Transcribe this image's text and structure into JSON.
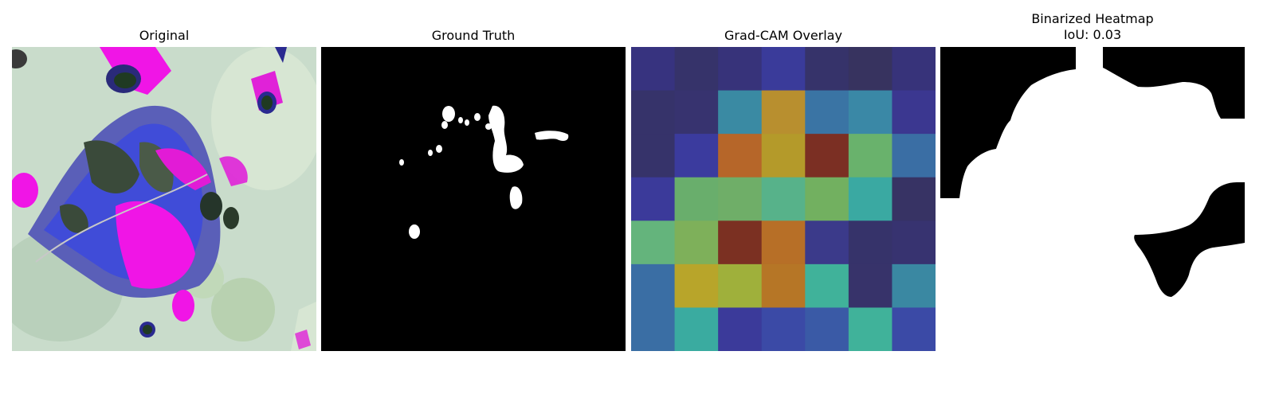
{
  "figure": {
    "panels": [
      {
        "title": "Original",
        "icon": "leaf-photo"
      },
      {
        "title": "Ground Truth",
        "icon": "binary-mask"
      },
      {
        "title": "Grad-CAM Overlay",
        "icon": "heatmap-grid"
      },
      {
        "title": "Binarized Heatmap",
        "subtitle": "IoU: 0.03",
        "icon": "binary-mask"
      }
    ]
  },
  "gradcam": {
    "rows": 7,
    "cols": 7,
    "colors": [
      [
        "#37337f",
        "#36336a",
        "#37337a",
        "#3a3b9a",
        "#36336a",
        "#37335f",
        "#37337a"
      ],
      [
        "#36336a",
        "#37336f",
        "#3a8aa3",
        "#b88f2f",
        "#3a74a4",
        "#3a88a6",
        "#3b3790"
      ],
      [
        "#36336a",
        "#3b3b9e",
        "#b66629",
        "#b49a2a",
        "#7b2f23",
        "#69b26c",
        "#3a6ea4"
      ],
      [
        "#3b3a9a",
        "#69ae6c",
        "#6fae68",
        "#57b28a",
        "#72b060",
        "#3aa9a2",
        "#373364"
      ],
      [
        "#64b47c",
        "#7eb05a",
        "#7b3022",
        "#b76f27",
        "#3b3a8a",
        "#36336a",
        "#373370"
      ],
      [
        "#3a6ea4",
        "#b8a52a",
        "#9fb03b",
        "#b67626",
        "#40b29a",
        "#37336a",
        "#3a88a2"
      ],
      [
        "#3a6ea4",
        "#3aaba0",
        "#3b3a9a",
        "#3b4aa6",
        "#3a5aa6",
        "#40b29a",
        "#3b4aa6"
      ]
    ]
  }
}
